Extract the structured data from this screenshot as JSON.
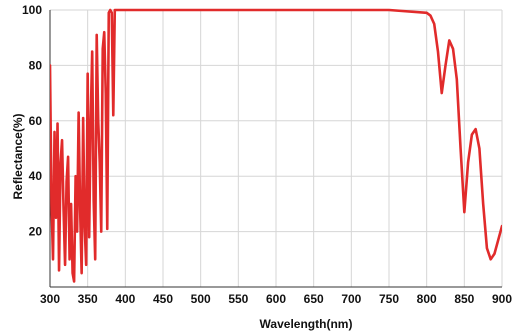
{
  "chart_data": {
    "type": "line",
    "xlabel": "Wavelength(nm)",
    "ylabel": "Reflectance(%)",
    "xlim": [
      300,
      900
    ],
    "ylim": [
      0,
      100
    ],
    "x_ticks": [
      300,
      350,
      400,
      450,
      500,
      550,
      600,
      650,
      700,
      750,
      800,
      850,
      900
    ],
    "y_ticks": [
      20,
      40,
      60,
      80,
      100
    ],
    "grid": true,
    "legend": "none",
    "colors": {
      "line": "#e12b2b",
      "grid": "#d6d6d6",
      "axis": "#333333"
    },
    "series": [
      {
        "x": [
          300,
          302,
          304,
          306,
          308,
          310,
          312,
          314,
          316,
          318,
          320,
          322,
          324,
          326,
          328,
          330,
          332,
          334,
          336,
          338,
          340,
          342,
          344,
          346,
          348,
          350,
          352,
          354,
          356,
          358,
          360,
          362,
          364,
          366,
          368,
          370,
          372,
          374,
          376,
          378,
          380,
          382,
          384,
          386,
          388,
          390,
          392,
          394,
          396,
          398,
          400,
          450,
          500,
          550,
          600,
          650,
          700,
          750,
          800,
          805,
          810,
          815,
          820,
          825,
          830,
          835,
          840,
          845,
          850,
          855,
          860,
          865,
          870,
          875,
          880,
          885,
          890,
          895,
          900
        ],
        "y": [
          80,
          30,
          10,
          56,
          25,
          59,
          6,
          45,
          53,
          28,
          8,
          38,
          47,
          10,
          30,
          5,
          2,
          40,
          20,
          63,
          28,
          5,
          61,
          22,
          8,
          77,
          18,
          60,
          85,
          31,
          10,
          91,
          60,
          45,
          20,
          86,
          92,
          70,
          21,
          99,
          100,
          99,
          62,
          100,
          100,
          100,
          100,
          100,
          100,
          100,
          100,
          100,
          100,
          100,
          100,
          100,
          100,
          100,
          99,
          98,
          95,
          85,
          70,
          80,
          89,
          86,
          75,
          50,
          27,
          45,
          55,
          57,
          50,
          30,
          14,
          10,
          12,
          17,
          22
        ]
      }
    ]
  }
}
